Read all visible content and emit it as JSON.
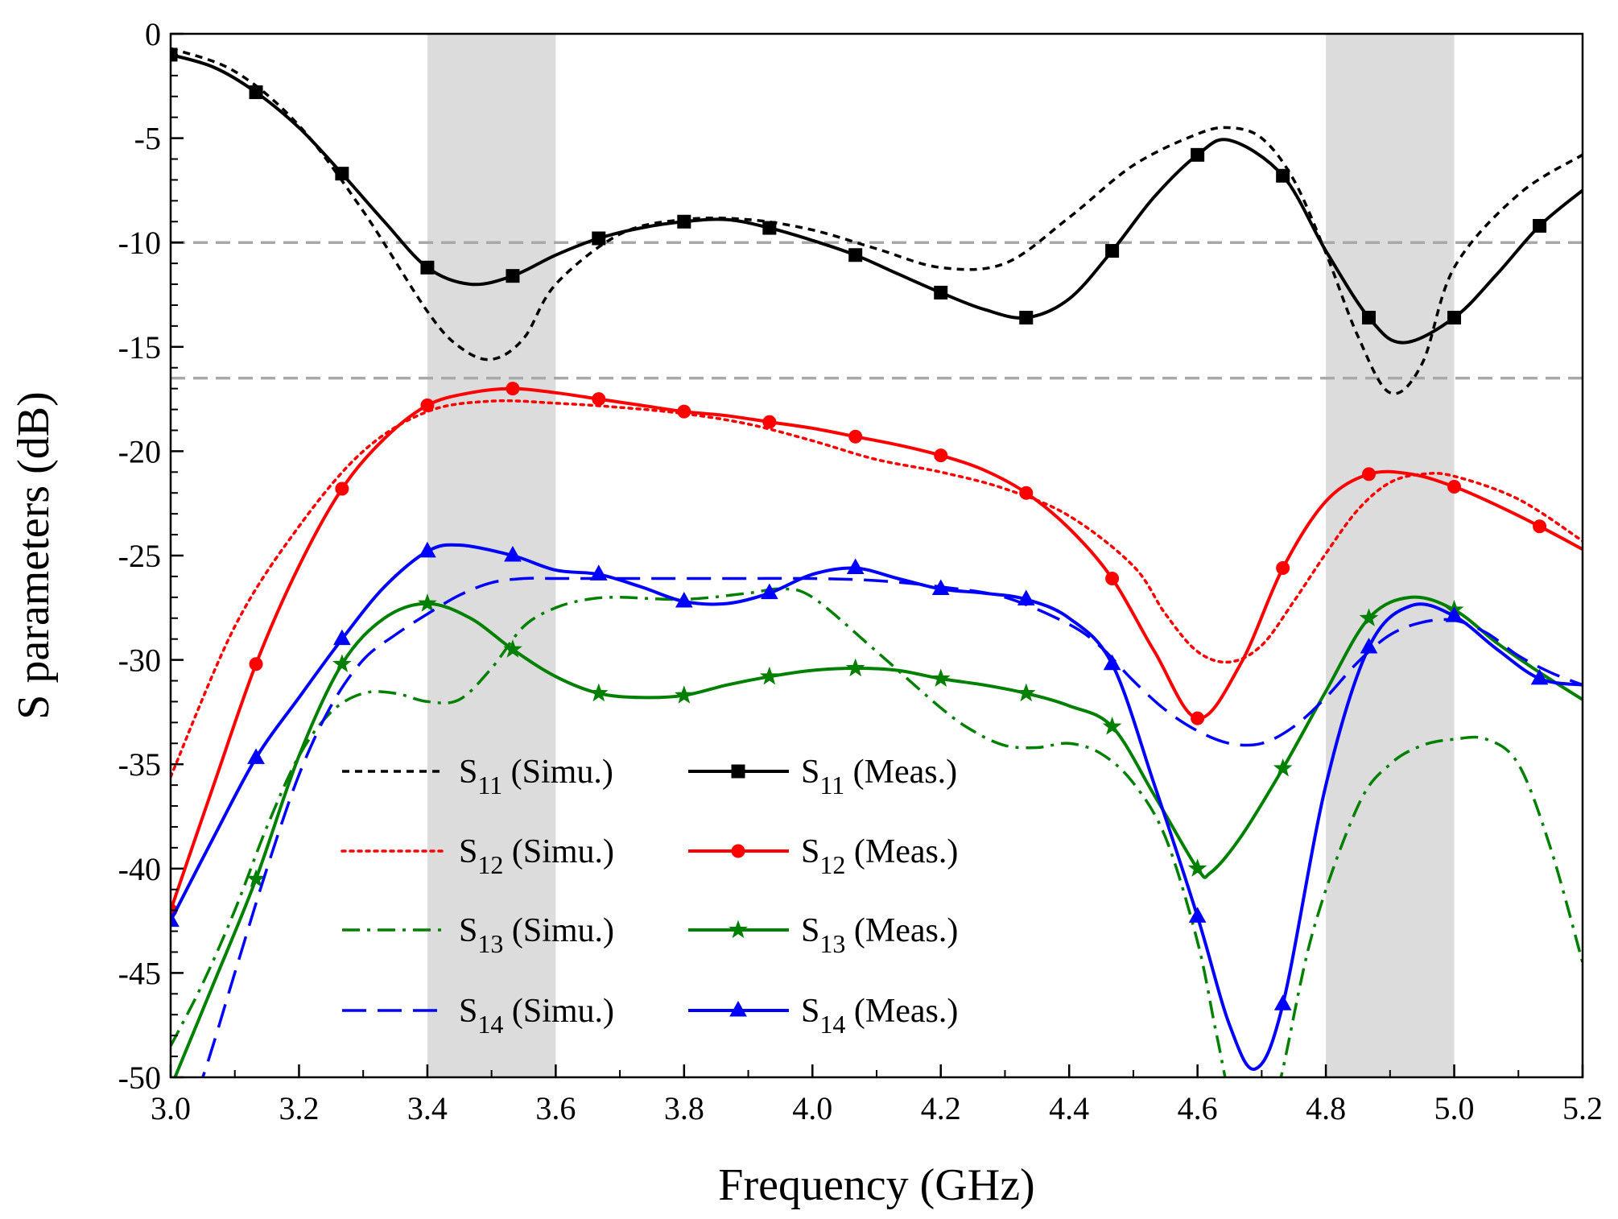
{
  "chart_data": {
    "type": "line",
    "xlabel": "Frequency (GHz)",
    "ylabel": "S parameters (dB)",
    "xlim": [
      3.0,
      5.2
    ],
    "ylim": [
      -50,
      0
    ],
    "xticks": [
      3.0,
      3.2,
      3.4,
      3.6,
      3.8,
      4.0,
      4.2,
      4.4,
      4.6,
      4.8,
      5.0,
      5.2
    ],
    "yticks": [
      0,
      -5,
      -10,
      -15,
      -20,
      -25,
      -30,
      -35,
      -40,
      -45,
      -50
    ],
    "xtick_labels": [
      "3.0",
      "3.2",
      "3.4",
      "3.6",
      "3.8",
      "4.0",
      "4.2",
      "4.4",
      "4.6",
      "4.8",
      "5.0",
      "5.2"
    ],
    "ytick_labels": [
      "0",
      "-5",
      "-10",
      "-15",
      "-20",
      "-25",
      "-30",
      "-35",
      "-40",
      "-45",
      "-50"
    ],
    "grid": false,
    "legend_position": "bottom-left",
    "shaded_bands": [
      {
        "x0": 3.4,
        "x1": 3.6,
        "color": "#dcdcdc"
      },
      {
        "x0": 4.8,
        "x1": 5.0,
        "color": "#dcdcdc"
      }
    ],
    "reference_lines": [
      {
        "y": -10,
        "color": "#a8a8a8",
        "dash": "dashed"
      },
      {
        "y": -16.5,
        "color": "#a8a8a8",
        "dash": "dashed"
      }
    ],
    "series": [
      {
        "name_main": "S",
        "name_sub": "11",
        "name_suffix": " (Simu.)",
        "color": "#000000",
        "style": "short-dash",
        "marker": "none",
        "x": [
          3.0,
          3.1,
          3.2,
          3.3,
          3.4,
          3.45,
          3.5,
          3.55,
          3.6,
          3.7,
          3.8,
          3.9,
          4.0,
          4.1,
          4.2,
          4.3,
          4.4,
          4.5,
          4.6,
          4.65,
          4.7,
          4.75,
          4.8,
          4.85,
          4.9,
          4.95,
          5.0,
          5.1,
          5.2
        ],
        "y": [
          -0.7,
          -1.8,
          -4.4,
          -8.5,
          -13.3,
          -15.0,
          -15.6,
          -14.6,
          -12.0,
          -9.6,
          -8.9,
          -8.9,
          -9.4,
          -10.3,
          -11.2,
          -11.0,
          -8.8,
          -6.3,
          -4.8,
          -4.5,
          -5.0,
          -7.0,
          -10.5,
          -14.5,
          -17.2,
          -15.8,
          -11.2,
          -7.7,
          -5.8
        ]
      },
      {
        "name_main": "S",
        "name_sub": "11",
        "name_suffix": " (Meas.)",
        "color": "#000000",
        "style": "solid",
        "marker": "square",
        "x": [
          3.0,
          3.067,
          3.133,
          3.2,
          3.267,
          3.333,
          3.4,
          3.467,
          3.533,
          3.6,
          3.667,
          3.733,
          3.8,
          3.867,
          3.933,
          4.0,
          4.067,
          4.133,
          4.2,
          4.267,
          4.333,
          4.4,
          4.467,
          4.533,
          4.6,
          4.65,
          4.733,
          4.8,
          4.867,
          4.92,
          5.0,
          5.067,
          5.133,
          5.2
        ],
        "y": [
          -1.0,
          -1.6,
          -2.8,
          -4.5,
          -6.7,
          -9.0,
          -11.2,
          -12.0,
          -11.6,
          -10.6,
          -9.8,
          -9.3,
          -9.0,
          -8.9,
          -9.3,
          -9.9,
          -10.6,
          -11.5,
          -12.4,
          -13.2,
          -13.6,
          -12.7,
          -10.4,
          -7.8,
          -5.8,
          -5.1,
          -6.8,
          -10.4,
          -13.6,
          -14.8,
          -13.6,
          -11.5,
          -9.2,
          -7.5
        ],
        "marker_x": [
          3.0,
          3.133,
          3.267,
          3.4,
          3.533,
          3.667,
          3.8,
          3.933,
          4.067,
          4.2,
          4.333,
          4.467,
          4.6,
          4.733,
          4.867,
          5.0,
          5.133
        ]
      },
      {
        "name_main": "S",
        "name_sub": "12",
        "name_suffix": " (Simu.)",
        "color": "#ff0000",
        "style": "dotted",
        "marker": "none",
        "x": [
          3.0,
          3.1,
          3.2,
          3.3,
          3.4,
          3.5,
          3.6,
          3.7,
          3.8,
          3.9,
          4.0,
          4.1,
          4.2,
          4.3,
          4.4,
          4.5,
          4.55,
          4.6,
          4.65,
          4.7,
          4.75,
          4.8,
          4.85,
          4.9,
          4.95,
          5.0,
          5.1,
          5.2
        ],
        "y": [
          -35.6,
          -28.4,
          -23.6,
          -20.0,
          -18.1,
          -17.6,
          -17.7,
          -17.9,
          -18.2,
          -18.7,
          -19.5,
          -20.4,
          -21.0,
          -21.8,
          -23.1,
          -25.5,
          -27.8,
          -29.6,
          -30.1,
          -29.3,
          -27.2,
          -24.9,
          -22.8,
          -21.5,
          -21.1,
          -21.2,
          -22.3,
          -24.3
        ]
      },
      {
        "name_main": "S",
        "name_sub": "12",
        "name_suffix": " (Meas.)",
        "color": "#ff0000",
        "style": "solid",
        "marker": "circle",
        "x": [
          3.0,
          3.067,
          3.133,
          3.2,
          3.267,
          3.333,
          3.4,
          3.467,
          3.533,
          3.6,
          3.667,
          3.733,
          3.8,
          3.867,
          3.933,
          4.0,
          4.067,
          4.133,
          4.2,
          4.267,
          4.333,
          4.4,
          4.467,
          4.533,
          4.6,
          4.667,
          4.733,
          4.8,
          4.867,
          4.933,
          5.0,
          5.067,
          5.133,
          5.2
        ],
        "y": [
          -42.0,
          -36.0,
          -30.2,
          -25.5,
          -21.8,
          -19.4,
          -17.8,
          -17.2,
          -17.0,
          -17.2,
          -17.5,
          -17.8,
          -18.1,
          -18.3,
          -18.6,
          -18.9,
          -19.3,
          -19.7,
          -20.2,
          -20.9,
          -22.0,
          -23.7,
          -26.1,
          -29.6,
          -32.8,
          -30.2,
          -25.6,
          -22.4,
          -21.1,
          -21.1,
          -21.7,
          -22.6,
          -23.6,
          -24.7
        ],
        "marker_x": [
          3.0,
          3.133,
          3.267,
          3.4,
          3.533,
          3.667,
          3.8,
          3.933,
          4.067,
          4.2,
          4.333,
          4.467,
          4.6,
          4.733,
          4.867,
          5.0,
          5.133
        ]
      },
      {
        "name_main": "S",
        "name_sub": "13",
        "name_suffix": " (Simu.)",
        "color": "#008000",
        "style": "dash-dot",
        "marker": "none",
        "x": [
          3.0,
          3.05,
          3.1,
          3.15,
          3.2,
          3.25,
          3.3,
          3.35,
          3.4,
          3.45,
          3.5,
          3.55,
          3.6,
          3.65,
          3.7,
          3.8,
          3.9,
          3.95,
          4.0,
          4.1,
          4.2,
          4.25,
          4.3,
          4.35,
          4.4,
          4.45,
          4.5,
          4.55,
          4.6,
          4.63,
          4.66,
          4.7,
          4.73,
          4.78,
          4.85,
          4.9,
          4.95,
          5.0,
          5.05,
          5.1,
          5.15,
          5.2
        ],
        "y": [
          -48.5,
          -45.5,
          -42.0,
          -38.0,
          -34.6,
          -32.5,
          -31.6,
          -31.6,
          -32.0,
          -31.9,
          -30.4,
          -28.4,
          -27.5,
          -27.1,
          -27.0,
          -27.1,
          -26.8,
          -26.6,
          -27.0,
          -29.6,
          -32.3,
          -33.4,
          -34.1,
          -34.2,
          -34.0,
          -34.5,
          -35.9,
          -38.5,
          -43.5,
          -48.0,
          -52.0,
          -53.0,
          -50.0,
          -43.0,
          -37.0,
          -35.0,
          -34.1,
          -33.8,
          -33.8,
          -35.0,
          -39.0,
          -44.5
        ]
      },
      {
        "name_main": "S",
        "name_sub": "13",
        "name_suffix": " (Meas.)",
        "color": "#008000",
        "style": "solid",
        "marker": "star",
        "x": [
          3.0,
          3.067,
          3.133,
          3.2,
          3.267,
          3.333,
          3.4,
          3.467,
          3.533,
          3.6,
          3.667,
          3.733,
          3.8,
          3.867,
          3.933,
          4.0,
          4.067,
          4.133,
          4.2,
          4.267,
          4.333,
          4.4,
          4.467,
          4.533,
          4.6,
          4.62,
          4.667,
          4.733,
          4.8,
          4.867,
          4.933,
          5.0,
          5.067,
          5.133,
          5.2
        ],
        "y": [
          -50.5,
          -45.5,
          -40.5,
          -34.6,
          -30.2,
          -28.0,
          -27.3,
          -28.0,
          -29.5,
          -30.8,
          -31.6,
          -31.8,
          -31.7,
          -31.2,
          -30.8,
          -30.5,
          -30.4,
          -30.5,
          -30.9,
          -31.2,
          -31.6,
          -32.2,
          -33.2,
          -36.5,
          -40.0,
          -40.2,
          -38.5,
          -35.2,
          -31.5,
          -28.0,
          -27.0,
          -27.6,
          -29.2,
          -30.6,
          -31.9
        ],
        "marker_x": [
          3.133,
          3.267,
          3.4,
          3.533,
          3.667,
          3.8,
          3.933,
          4.067,
          4.2,
          4.333,
          4.467,
          4.6,
          4.733,
          4.867,
          5.0
        ]
      },
      {
        "name_main": "S",
        "name_sub": "14",
        "name_suffix": " (Simu.)",
        "color": "#0000ff",
        "style": "long-dash",
        "marker": "none",
        "x": [
          3.0,
          3.05,
          3.1,
          3.15,
          3.2,
          3.25,
          3.3,
          3.35,
          3.4,
          3.45,
          3.5,
          3.55,
          3.6,
          3.7,
          3.8,
          3.9,
          4.0,
          4.1,
          4.2,
          4.3,
          4.4,
          4.45,
          4.5,
          4.55,
          4.6,
          4.65,
          4.7,
          4.75,
          4.8,
          4.85,
          4.9,
          4.95,
          5.0,
          5.05,
          5.1,
          5.15,
          5.2
        ],
        "y": [
          -54.0,
          -50.0,
          -45.0,
          -40.0,
          -35.5,
          -32.2,
          -30.0,
          -28.8,
          -27.8,
          -26.9,
          -26.3,
          -26.1,
          -26.1,
          -26.1,
          -26.1,
          -26.1,
          -26.1,
          -26.2,
          -26.5,
          -27.0,
          -28.3,
          -29.4,
          -31.0,
          -32.4,
          -33.4,
          -34.0,
          -34.0,
          -33.2,
          -31.8,
          -30.1,
          -28.8,
          -28.2,
          -28.1,
          -28.7,
          -29.8,
          -30.6,
          -31.2
        ]
      },
      {
        "name_main": "S",
        "name_sub": "14",
        "name_suffix": " (Meas.)",
        "color": "#0000ff",
        "style": "solid",
        "marker": "triangle",
        "x": [
          3.0,
          3.067,
          3.133,
          3.2,
          3.267,
          3.333,
          3.4,
          3.45,
          3.533,
          3.6,
          3.667,
          3.733,
          3.8,
          3.867,
          3.933,
          4.0,
          4.067,
          4.133,
          4.2,
          4.267,
          4.333,
          4.4,
          4.467,
          4.533,
          4.6,
          4.65,
          4.69,
          4.733,
          4.8,
          4.867,
          4.933,
          5.0,
          5.067,
          5.133,
          5.2
        ],
        "y": [
          -42.5,
          -38.5,
          -34.7,
          -31.8,
          -29.0,
          -26.5,
          -24.8,
          -24.5,
          -25.0,
          -25.7,
          -25.9,
          -26.5,
          -27.2,
          -27.3,
          -26.8,
          -25.9,
          -25.6,
          -26.1,
          -26.6,
          -26.8,
          -27.1,
          -28.0,
          -30.2,
          -36.0,
          -42.3,
          -47.5,
          -49.6,
          -46.5,
          -36.0,
          -29.4,
          -27.4,
          -27.9,
          -29.5,
          -30.9,
          -31.2
        ],
        "marker_x": [
          3.0,
          3.133,
          3.267,
          3.4,
          3.533,
          3.667,
          3.8,
          3.933,
          4.067,
          4.2,
          4.333,
          4.467,
          4.6,
          4.733,
          4.867,
          5.0,
          5.133
        ]
      }
    ]
  }
}
